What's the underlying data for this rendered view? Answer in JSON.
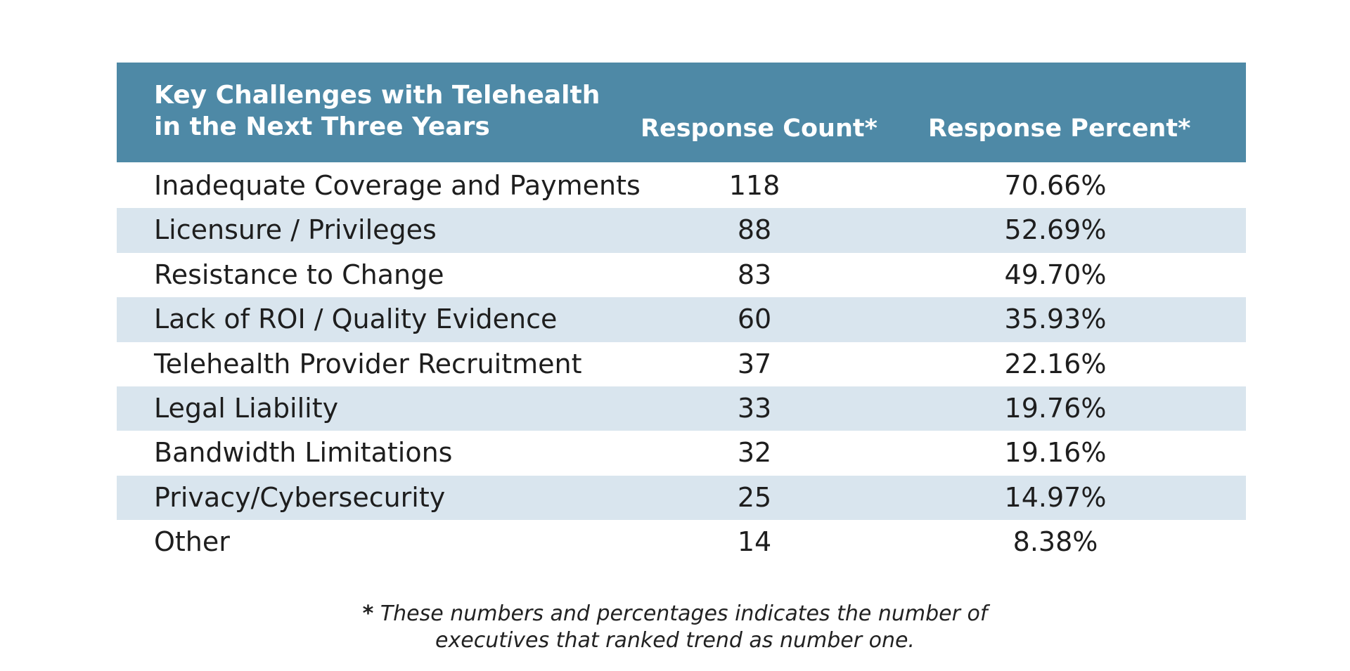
{
  "chart_data": {
    "type": "table",
    "title": "Key Challenges with Telehealth in the Next Three Years",
    "columns": [
      "Key Challenges with Telehealth in the Next Three Years",
      "Response Count*",
      "Response Percent*"
    ],
    "header": {
      "col1_line1": "Key Challenges with Telehealth",
      "col1_line2": "in the Next Three Years",
      "col2": "Response Count*",
      "col3": "Response Percent*"
    },
    "rows": [
      {
        "label": "Inadequate Coverage and Payments",
        "count": "118",
        "percent": "70.66%"
      },
      {
        "label": "Licensure / Privileges",
        "count": "88",
        "percent": "52.69%"
      },
      {
        "label": "Resistance to Change",
        "count": "83",
        "percent": "49.70%"
      },
      {
        "label": "Lack of ROI / Quality Evidence",
        "count": "60",
        "percent": "35.93%"
      },
      {
        "label": "Telehealth Provider Recruitment",
        "count": "37",
        "percent": "22.16%"
      },
      {
        "label": "Legal Liability",
        "count": "33",
        "percent": "19.76%"
      },
      {
        "label": "Bandwidth Limitations",
        "count": "32",
        "percent": "19.16%"
      },
      {
        "label": "Privacy/Cybersecurity",
        "count": "25",
        "percent": "14.97%"
      },
      {
        "label": "Other",
        "count": "14",
        "percent": "8.38%"
      }
    ],
    "footnote": {
      "star": "*",
      "line1": "These numbers and percentages indicates the number of",
      "line2": "executives that ranked trend as number one."
    }
  },
  "colors": {
    "header_bg": "#4e89a6",
    "row_shade": "#d9e5ee"
  }
}
